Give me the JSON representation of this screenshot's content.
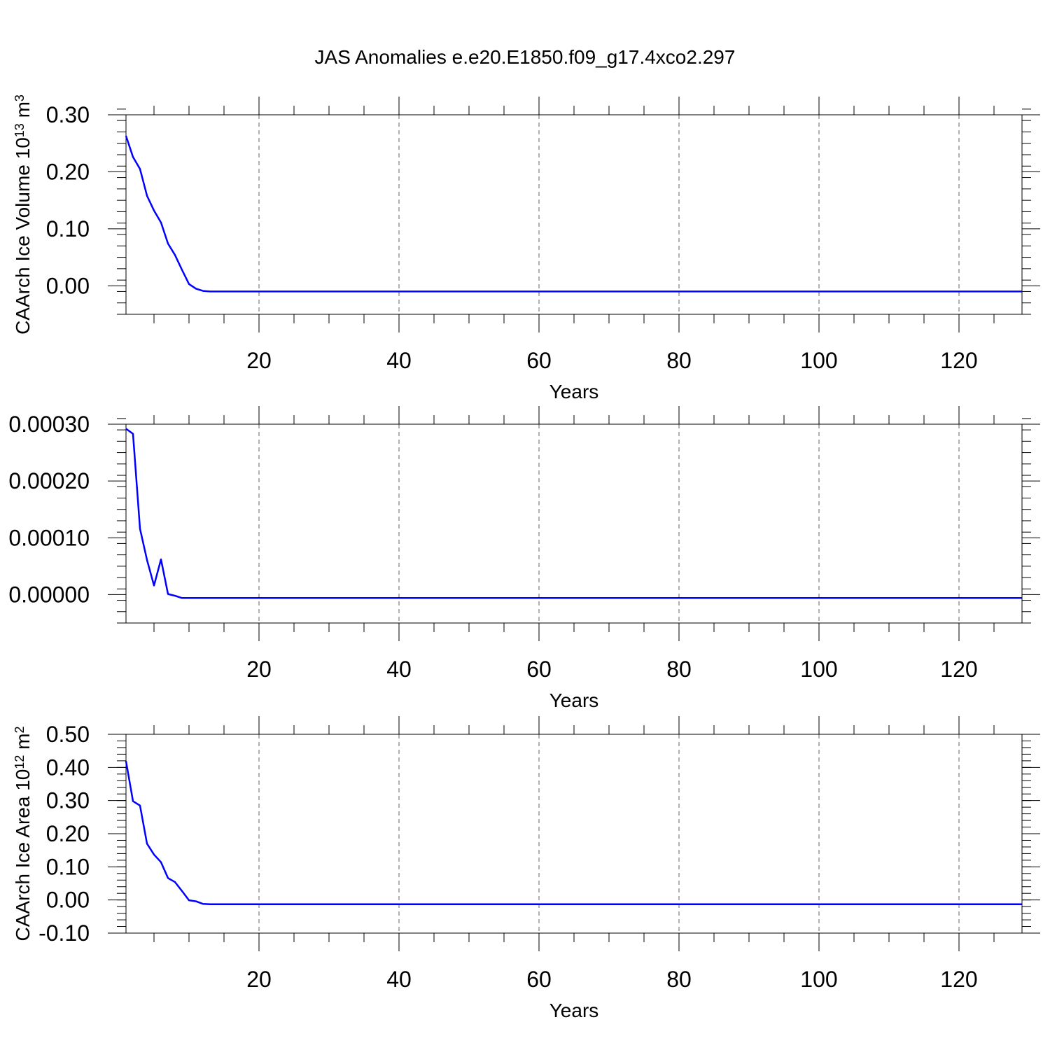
{
  "figure": {
    "title": "JAS Anomalies e.e20.E1850.f09_g17.4xco2.297"
  },
  "colors": {
    "line": "#0000ff",
    "axis": "#000000",
    "grid": "#666666"
  },
  "chart_data": [
    {
      "type": "line",
      "title": "",
      "xlabel": "Years",
      "ylabel": "CAArch Ice Volume 10",
      "ylabel_exp": "13",
      "ylabel_unit": " m",
      "ylabel_unit_exp": "3",
      "xlim": [
        1,
        129
      ],
      "ylim": [
        -0.05,
        0.3
      ],
      "xticks": [
        20,
        40,
        60,
        80,
        100,
        120
      ],
      "xtick_labels": [
        "20",
        "40",
        "60",
        "80",
        "100",
        "120"
      ],
      "yticks": [
        0.0,
        0.1,
        0.2,
        0.3
      ],
      "ytick_labels": [
        "0.00",
        "0.10",
        "0.20",
        "0.30"
      ],
      "y_minor_step": 0.02,
      "grid": "vertical-dashed",
      "series": [
        {
          "x": [
            1,
            2,
            3,
            4,
            5,
            6,
            7,
            8,
            9,
            10,
            11,
            12,
            13,
            20,
            40,
            60,
            80,
            100,
            120,
            129
          ],
          "y": [
            0.263,
            0.226,
            0.205,
            0.158,
            0.132,
            0.111,
            0.074,
            0.054,
            0.028,
            0.003,
            -0.005,
            -0.009,
            -0.01,
            -0.01,
            -0.01,
            -0.01,
            -0.01,
            -0.01,
            -0.01,
            -0.01
          ]
        }
      ]
    },
    {
      "type": "line",
      "title": "",
      "xlabel": "Years",
      "ylabel": "",
      "xlim": [
        1,
        129
      ],
      "ylim": [
        -5e-05,
        0.0003
      ],
      "xticks": [
        20,
        40,
        60,
        80,
        100,
        120
      ],
      "xtick_labels": [
        "20",
        "40",
        "60",
        "80",
        "100",
        "120"
      ],
      "yticks": [
        0.0,
        0.0001,
        0.0002,
        0.0003
      ],
      "ytick_labels": [
        "0.00000",
        "0.00010",
        "0.00020",
        "0.00030"
      ],
      "y_minor_step": 2e-05,
      "grid": "vertical-dashed",
      "series": [
        {
          "x": [
            1,
            2,
            3,
            4,
            5,
            6,
            7,
            8,
            9,
            10,
            11,
            20,
            40,
            60,
            80,
            100,
            120,
            129
          ],
          "y": [
            0.000292,
            0.000283,
            0.000116,
            6.1e-05,
            1.6e-05,
            6.2e-05,
            1e-06,
            -2e-06,
            -6e-06,
            -6e-06,
            -6e-06,
            -6e-06,
            -6e-06,
            -6e-06,
            -6e-06,
            -6e-06,
            -6e-06,
            -6e-06
          ]
        }
      ]
    },
    {
      "type": "line",
      "title": "",
      "xlabel": "Years",
      "ylabel": "CAArch Ice Area 10",
      "ylabel_exp": "12",
      "ylabel_unit": " m",
      "ylabel_unit_exp": "2",
      "xlim": [
        1,
        129
      ],
      "ylim": [
        -0.1,
        0.5
      ],
      "xticks": [
        20,
        40,
        60,
        80,
        100,
        120
      ],
      "xtick_labels": [
        "20",
        "40",
        "60",
        "80",
        "100",
        "120"
      ],
      "yticks": [
        -0.1,
        0.0,
        0.1,
        0.2,
        0.3,
        0.4,
        0.5
      ],
      "ytick_labels": [
        "-0.10",
        "0.00",
        "0.10",
        "0.20",
        "0.30",
        "0.40",
        "0.50"
      ],
      "y_minor_step": 0.02,
      "grid": "vertical-dashed",
      "series": [
        {
          "x": [
            1,
            2,
            3,
            4,
            5,
            6,
            7,
            8,
            9,
            10,
            11,
            12,
            13,
            20,
            40,
            60,
            80,
            100,
            120,
            129
          ],
          "y": [
            0.419,
            0.298,
            0.285,
            0.17,
            0.137,
            0.114,
            0.066,
            0.054,
            0.027,
            -0.001,
            -0.004,
            -0.012,
            -0.013,
            -0.013,
            -0.013,
            -0.013,
            -0.013,
            -0.013,
            -0.013,
            -0.013
          ]
        }
      ]
    }
  ]
}
